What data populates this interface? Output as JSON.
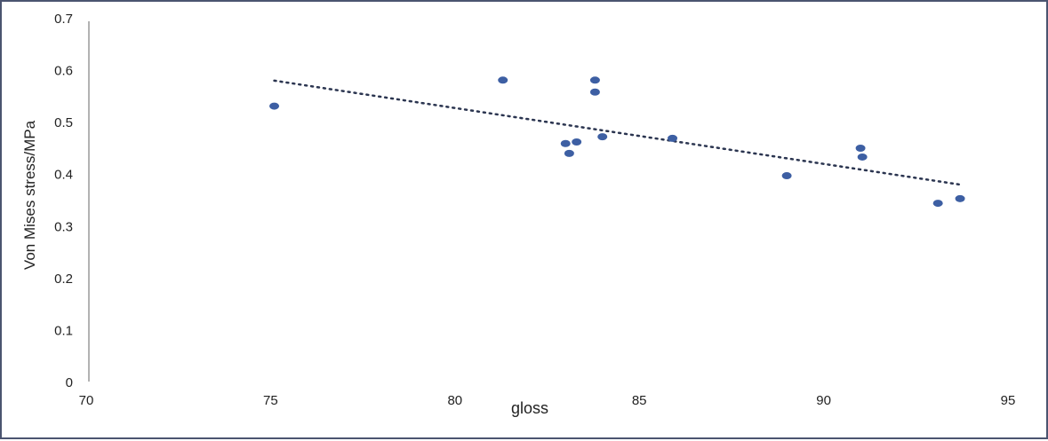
{
  "chart_data": {
    "type": "scatter",
    "title": "",
    "xlabel": "gloss",
    "ylabel": "Von Mises stress/MPa",
    "xlim": [
      70,
      95
    ],
    "ylim": [
      0,
      0.7
    ],
    "x_ticks": [
      "70",
      "75",
      "80",
      "85",
      "90",
      "95"
    ],
    "y_ticks": [
      "0",
      "0.1",
      "0.2",
      "0.3",
      "0.4",
      "0.5",
      "0.6",
      "0.7"
    ],
    "grid": false,
    "point_color": "#3d5fa3",
    "trendline_color": "#2b3550",
    "points": [
      {
        "x": 75.1,
        "y": 0.53
      },
      {
        "x": 81.3,
        "y": 0.58
      },
      {
        "x": 83.0,
        "y": 0.458
      },
      {
        "x": 83.1,
        "y": 0.439
      },
      {
        "x": 83.3,
        "y": 0.461
      },
      {
        "x": 83.8,
        "y": 0.58
      },
      {
        "x": 83.8,
        "y": 0.557
      },
      {
        "x": 84.0,
        "y": 0.471
      },
      {
        "x": 85.9,
        "y": 0.468
      },
      {
        "x": 89.0,
        "y": 0.396
      },
      {
        "x": 91.0,
        "y": 0.449
      },
      {
        "x": 91.05,
        "y": 0.432
      },
      {
        "x": 93.1,
        "y": 0.343
      },
      {
        "x": 93.7,
        "y": 0.352
      }
    ],
    "trendline": {
      "type": "linear",
      "x": [
        75.1,
        93.7
      ],
      "y": [
        0.579,
        0.379
      ]
    }
  }
}
